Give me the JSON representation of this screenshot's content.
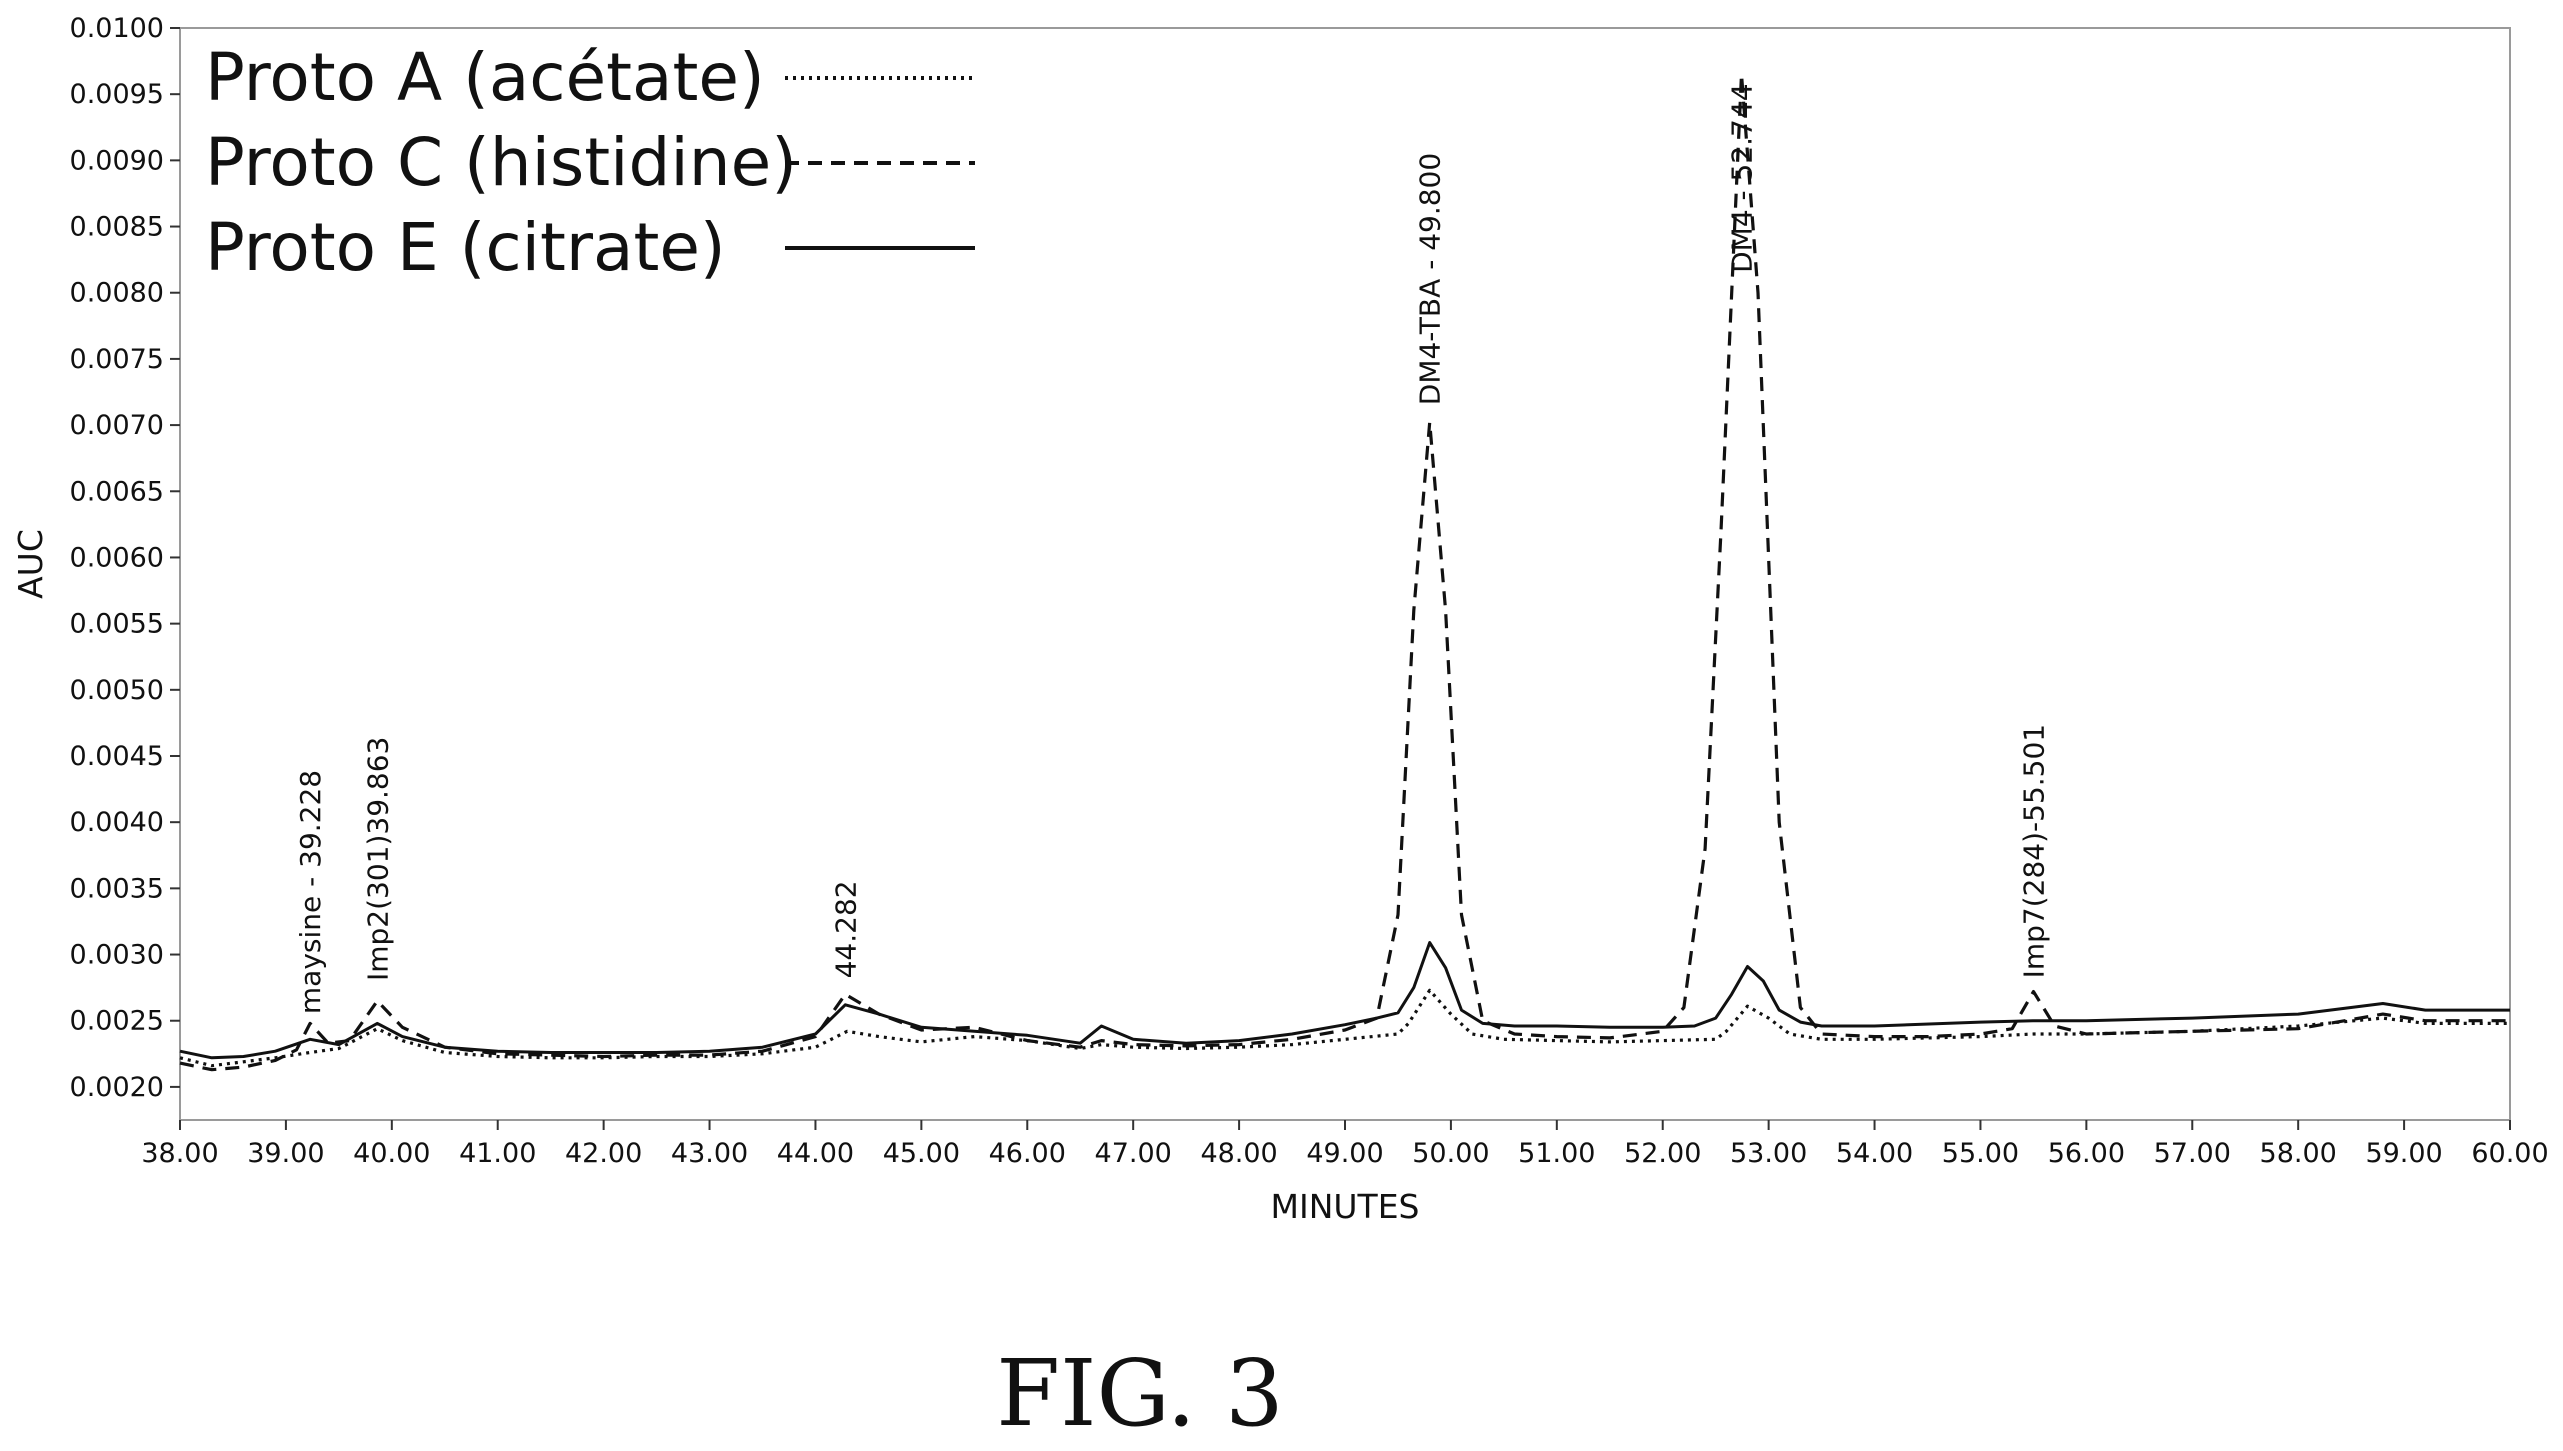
{
  "figure": {
    "caption": "FIG. 3"
  },
  "chart_data": {
    "type": "line",
    "title": "",
    "xlabel": "MINUTES",
    "ylabel": "AUC",
    "xlim": [
      38.0,
      60.0
    ],
    "ylim": [
      0.00175,
      0.01
    ],
    "x_ticks": [
      38,
      39,
      40,
      41,
      42,
      43,
      44,
      45,
      46,
      47,
      48,
      49,
      50,
      51,
      52,
      53,
      54,
      55,
      56,
      57,
      58,
      59,
      60
    ],
    "x_tick_labels": [
      "38.00",
      "39.00",
      "40.00",
      "41.00",
      "42.00",
      "43.00",
      "44.00",
      "45.00",
      "46.00",
      "47.00",
      "48.00",
      "49.00",
      "50.00",
      "51.00",
      "52.00",
      "53.00",
      "54.00",
      "55.00",
      "56.00",
      "57.00",
      "58.00",
      "59.00",
      "60.00"
    ],
    "y_ticks": [
      0.002,
      0.0025,
      0.003,
      0.0035,
      0.004,
      0.0045,
      0.005,
      0.0055,
      0.006,
      0.0065,
      0.007,
      0.0075,
      0.008,
      0.0085,
      0.009,
      0.0095,
      0.01
    ],
    "y_tick_labels": [
      "0.0020",
      "0.0025",
      "0.0030",
      "0.0035",
      "0.0040",
      "0.0045",
      "0.0050",
      "0.0055",
      "0.0060",
      "0.0065",
      "0.0070",
      "0.0075",
      "0.0080",
      "0.0085",
      "0.0090",
      "0.0095",
      "0.0100"
    ],
    "grid": false,
    "legend_position": "top-left",
    "series": [
      {
        "name": "Proto A (acétate)",
        "line_style": "dotted",
        "color": "#111111",
        "x": [
          38.0,
          38.3,
          38.6,
          38.9,
          39.228,
          39.5,
          39.863,
          40.1,
          40.5,
          41.0,
          41.5,
          42.0,
          42.5,
          43.0,
          43.5,
          44.0,
          44.3,
          44.6,
          45.0,
          45.5,
          46.0,
          46.5,
          46.7,
          47.0,
          47.5,
          48.0,
          48.5,
          49.0,
          49.5,
          49.6,
          49.8,
          50.0,
          50.2,
          50.5,
          51.0,
          51.5,
          52.0,
          52.5,
          52.6,
          52.8,
          53.0,
          53.2,
          53.5,
          54.0,
          55.0,
          55.5,
          56.0,
          57.0,
          58.0,
          58.8,
          59.2,
          60.0
        ],
        "y": [
          0.00222,
          0.00216,
          0.00219,
          0.00222,
          0.00226,
          0.00229,
          0.00244,
          0.00235,
          0.00226,
          0.00223,
          0.00222,
          0.00222,
          0.00223,
          0.00223,
          0.00225,
          0.0023,
          0.00242,
          0.00238,
          0.00234,
          0.00238,
          0.00235,
          0.00229,
          0.00232,
          0.0023,
          0.00229,
          0.0023,
          0.00232,
          0.00236,
          0.0024,
          0.00248,
          0.00273,
          0.00255,
          0.0024,
          0.00236,
          0.00235,
          0.00234,
          0.00235,
          0.00236,
          0.00242,
          0.00261,
          0.00252,
          0.0024,
          0.00236,
          0.00236,
          0.00238,
          0.0024,
          0.0024,
          0.00242,
          0.00246,
          0.00252,
          0.00248,
          0.00248
        ]
      },
      {
        "name": "Proto C (histidine)",
        "line_style": "dashed",
        "color": "#111111",
        "x": [
          38.0,
          38.3,
          38.6,
          38.9,
          39.1,
          39.228,
          39.4,
          39.6,
          39.863,
          40.1,
          40.5,
          41.0,
          41.5,
          42.0,
          42.5,
          43.0,
          43.5,
          44.0,
          44.282,
          44.6,
          45.0,
          45.5,
          46.0,
          46.5,
          46.7,
          47.0,
          47.5,
          48.0,
          48.5,
          49.0,
          49.3,
          49.5,
          49.65,
          49.8,
          49.95,
          50.1,
          50.3,
          50.6,
          51.0,
          51.5,
          52.0,
          52.2,
          52.4,
          52.55,
          52.744,
          52.9,
          53.1,
          53.3,
          53.5,
          54.0,
          54.5,
          55.0,
          55.3,
          55.501,
          55.7,
          56.0,
          57.0,
          58.0,
          58.8,
          59.2,
          60.0
        ],
        "y": [
          0.00218,
          0.00213,
          0.00215,
          0.0022,
          0.00228,
          0.00248,
          0.00233,
          0.00235,
          0.00265,
          0.00245,
          0.0023,
          0.00225,
          0.00224,
          0.00223,
          0.00224,
          0.00224,
          0.00227,
          0.00238,
          0.0027,
          0.00255,
          0.00243,
          0.00245,
          0.00235,
          0.0023,
          0.00235,
          0.00232,
          0.00231,
          0.00232,
          0.00236,
          0.00243,
          0.00252,
          0.0033,
          0.0056,
          0.00702,
          0.0056,
          0.0033,
          0.0025,
          0.0024,
          0.00238,
          0.00237,
          0.00242,
          0.0026,
          0.0038,
          0.0062,
          0.00965,
          0.008,
          0.004,
          0.0026,
          0.0024,
          0.00238,
          0.00238,
          0.0024,
          0.00244,
          0.00272,
          0.00246,
          0.0024,
          0.00242,
          0.00244,
          0.00255,
          0.0025,
          0.0025
        ]
      },
      {
        "name": "Proto E (citrate)",
        "line_style": "solid",
        "color": "#111111",
        "x": [
          38.0,
          38.3,
          38.6,
          38.9,
          39.228,
          39.5,
          39.863,
          40.1,
          40.5,
          41.0,
          41.5,
          42.0,
          42.5,
          43.0,
          43.5,
          44.0,
          44.282,
          44.6,
          45.0,
          45.5,
          46.0,
          46.5,
          46.7,
          47.0,
          47.5,
          48.0,
          48.5,
          49.0,
          49.3,
          49.5,
          49.65,
          49.8,
          49.95,
          50.1,
          50.3,
          50.6,
          51.0,
          51.5,
          52.0,
          52.3,
          52.5,
          52.65,
          52.8,
          52.95,
          53.1,
          53.3,
          53.5,
          54.0,
          55.0,
          55.5,
          56.0,
          57.0,
          58.0,
          58.8,
          59.2,
          60.0
        ],
        "y": [
          0.00227,
          0.00222,
          0.00223,
          0.00227,
          0.00236,
          0.00232,
          0.00248,
          0.00238,
          0.0023,
          0.00227,
          0.00226,
          0.00226,
          0.00226,
          0.00227,
          0.0023,
          0.0024,
          0.00262,
          0.00255,
          0.00245,
          0.00242,
          0.00239,
          0.00233,
          0.00246,
          0.00236,
          0.00233,
          0.00235,
          0.0024,
          0.00247,
          0.00252,
          0.00256,
          0.00275,
          0.00309,
          0.0029,
          0.00258,
          0.00248,
          0.00246,
          0.00246,
          0.00245,
          0.00245,
          0.00246,
          0.00252,
          0.0027,
          0.00291,
          0.0028,
          0.00258,
          0.00249,
          0.00246,
          0.00246,
          0.00249,
          0.0025,
          0.0025,
          0.00252,
          0.00255,
          0.00263,
          0.00258,
          0.00258
        ]
      }
    ],
    "peak_labels": [
      {
        "text": "maysine - 39.228",
        "x": 39.228,
        "y": 0.00255
      },
      {
        "text": "Imp2(301)39.863",
        "x": 39.863,
        "y": 0.0028
      },
      {
        "text": "44.282",
        "x": 44.282,
        "y": 0.00282
      },
      {
        "text": "DM4-TBA - 49.800",
        "x": 49.8,
        "y": 0.00715
      },
      {
        "text": "DM4 - 52.744",
        "x": 52.744,
        "y": 0.00815
      },
      {
        "text": "Imp7(284)-55.501",
        "x": 55.501,
        "y": 0.00282
      }
    ]
  }
}
